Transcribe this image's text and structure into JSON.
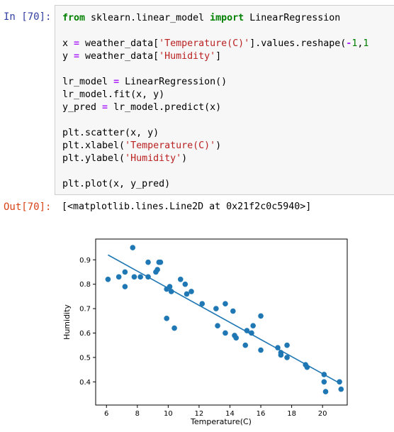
{
  "cell": {
    "in_prompt": "In [70]:",
    "out_prompt": "Out[70]:",
    "output_text": "[<matplotlib.lines.Line2D at 0x21f2c0c5940>]"
  },
  "code": {
    "import_from": "from",
    "import_module": " sklearn.linear_model ",
    "import_kw": "import",
    "import_name": " LinearRegression",
    "x_var": "x ",
    "eq": "=",
    "x_expr_a": " weather_data[",
    "x_str": "'Temperature(C)'",
    "x_expr_b": "].values.reshape(",
    "x_minus": "-",
    "x_one": "1",
    "x_comma": ",",
    "x_one2": "1",
    "y_var": "y ",
    "y_expr_a": " weather_data[",
    "y_str": "'Humidity'",
    "y_expr_b": "]",
    "lr_var": "lr_model ",
    "lr_expr": " LinearRegression()",
    "fit_line": "lr_model.fit(x, y)",
    "pred_var": "y_pred ",
    "pred_expr": " lr_model.predict(x)",
    "scatter_line": "plt.scatter(x, y)",
    "xlabel_a": "plt.xlabel(",
    "xlabel_str": "'Temperature(C)'",
    "xlabel_b": ")",
    "ylabel_a": "plt.ylabel(",
    "ylabel_str": "'Humidity'",
    "ylabel_b": ")",
    "plot_line": "plt.plot(x, y_pred)"
  },
  "colors": {
    "marker": "#1f77b4",
    "line": "#1f77b4",
    "in_prompt": "#303f9f",
    "out_prompt": "#d84315"
  },
  "chart_data": {
    "type": "scatter",
    "xlabel": "Temperature(C)",
    "ylabel": "Humidity",
    "xlim": [
      5.3,
      21.6
    ],
    "ylim": [
      0.305,
      0.985
    ],
    "xticks": [
      6,
      8,
      10,
      12,
      14,
      16,
      18,
      20
    ],
    "yticks": [
      0.4,
      0.5,
      0.6,
      0.7,
      0.8,
      0.9
    ],
    "grid": false,
    "series": [
      {
        "kind": "scatter",
        "x": [
          6.1,
          6.8,
          7.2,
          7.2,
          7.7,
          7.8,
          8.2,
          8.7,
          8.7,
          9.2,
          9.3,
          9.5,
          9.4,
          9.9,
          9.9,
          10.1,
          10.2,
          10.4,
          10.8,
          11.1,
          11.2,
          11.5,
          12.2,
          13.1,
          13.2,
          13.7,
          13.7,
          14.2,
          14.3,
          14.4,
          15.0,
          15.1,
          15.4,
          15.5,
          16.0,
          16.0,
          17.1,
          17.3,
          17.3,
          17.7,
          17.7,
          18.9,
          19.0,
          20.1,
          20.1,
          20.2,
          21.1,
          21.2
        ],
        "y": [
          0.82,
          0.83,
          0.79,
          0.85,
          0.95,
          0.83,
          0.83,
          0.89,
          0.83,
          0.85,
          0.86,
          0.89,
          0.89,
          0.78,
          0.66,
          0.79,
          0.77,
          0.62,
          0.82,
          0.8,
          0.76,
          0.77,
          0.72,
          0.7,
          0.63,
          0.72,
          0.6,
          0.69,
          0.59,
          0.58,
          0.55,
          0.61,
          0.6,
          0.63,
          0.67,
          0.53,
          0.54,
          0.52,
          0.51,
          0.55,
          0.5,
          0.47,
          0.46,
          0.43,
          0.4,
          0.36,
          0.4,
          0.37
        ]
      },
      {
        "kind": "line",
        "x": [
          6.1,
          21.1
        ],
        "y": [
          0.92,
          0.395
        ]
      }
    ]
  }
}
